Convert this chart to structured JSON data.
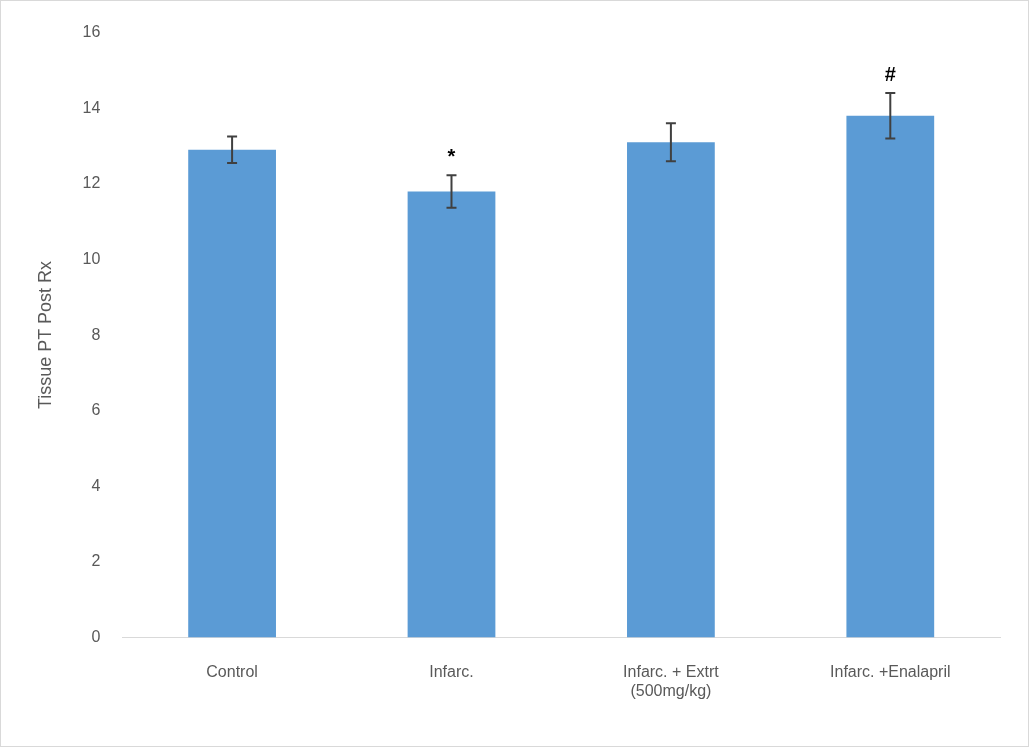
{
  "chart_data": {
    "type": "bar",
    "categories": [
      "Control",
      "Infarc.",
      "Infarc. + Extrt (500mg/kg)",
      "Infarc. +Enalapril"
    ],
    "values": [
      12.9,
      11.8,
      13.1,
      13.8
    ],
    "errors": [
      0.35,
      0.43,
      0.5,
      0.6
    ],
    "color": "#5b9bd5",
    "ylabel": "Tissue PT Post Rx",
    "ylim": [
      0,
      16
    ],
    "yticks": [
      0,
      2,
      4,
      6,
      8,
      10,
      12,
      14,
      16
    ],
    "annotations": [
      "*",
      "#"
    ],
    "grid": false,
    "legend": false
  }
}
